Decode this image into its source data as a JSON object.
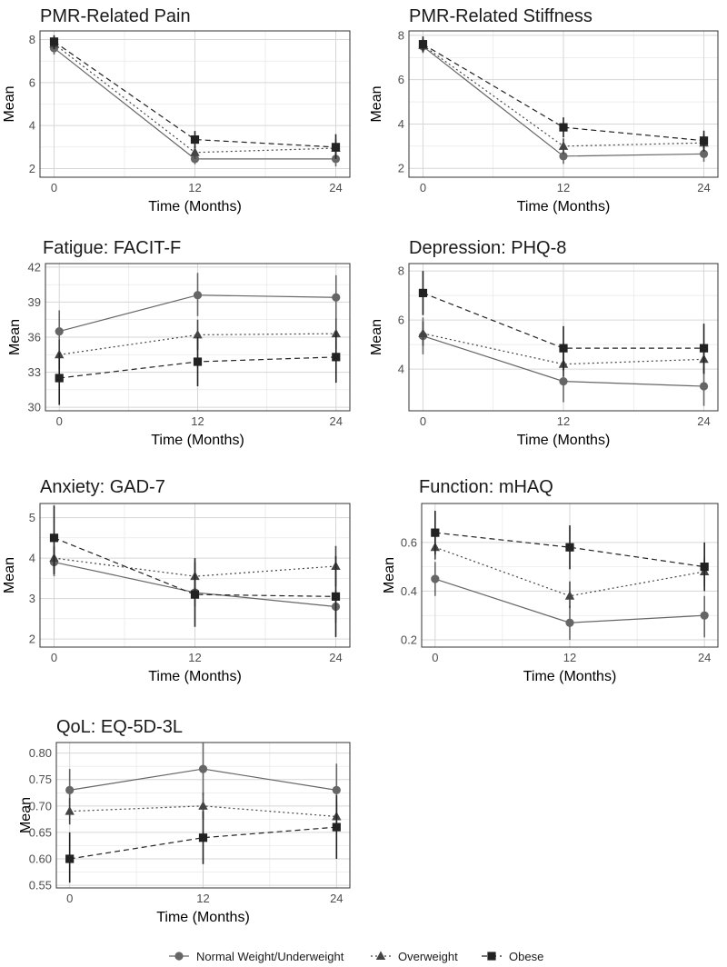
{
  "colors": {
    "normal": "#666666",
    "overweight": "#444444",
    "obese": "#222222",
    "grid": "#e3e3e3",
    "panel_border": "#333333"
  },
  "legend": {
    "items": [
      {
        "label": "Normal Weight/Underweight",
        "shape": "circle",
        "line": "solid"
      },
      {
        "label": "Overweight",
        "shape": "triangle",
        "line": "dotted"
      },
      {
        "label": "Obese",
        "shape": "square",
        "line": "dashed"
      }
    ]
  },
  "chart_data": [
    {
      "type": "line",
      "title": "PMR-Related Pain",
      "xlabel": "Time (Months)",
      "ylabel": "Mean",
      "x": [
        0,
        12,
        24
      ],
      "xticks": [
        0,
        12,
        24
      ],
      "xlim": [
        -1.2,
        25.2
      ],
      "yticks": [
        2,
        4,
        6,
        8
      ],
      "ylim": [
        1.6,
        8.4
      ],
      "series": [
        {
          "name": "Normal Weight/Underweight",
          "values": [
            7.6,
            2.45,
            2.45
          ],
          "err_low": [
            7.3,
            2.2,
            2.1
          ],
          "err_high": [
            7.9,
            2.7,
            2.8
          ]
        },
        {
          "name": "Overweight",
          "values": [
            7.8,
            2.75,
            2.95
          ],
          "err_low": [
            7.55,
            2.45,
            2.55
          ],
          "err_high": [
            8.05,
            3.05,
            3.35
          ]
        },
        {
          "name": "Obese",
          "values": [
            7.9,
            3.35,
            3.0
          ],
          "err_low": [
            7.55,
            2.95,
            2.45
          ],
          "err_high": [
            8.2,
            3.75,
            3.6
          ]
        }
      ]
    },
    {
      "type": "line",
      "title": "PMR-Related Stiffness",
      "xlabel": "Time (Months)",
      "ylabel": "Mean",
      "x": [
        0,
        12,
        24
      ],
      "xticks": [
        0,
        12,
        24
      ],
      "xlim": [
        -1.2,
        25.2
      ],
      "yticks": [
        2,
        4,
        6,
        8
      ],
      "ylim": [
        1.6,
        8.2
      ],
      "series": [
        {
          "name": "Normal Weight/Underweight",
          "values": [
            7.5,
            2.55,
            2.65
          ],
          "err_low": [
            7.2,
            2.2,
            2.3
          ],
          "err_high": [
            7.8,
            2.9,
            3.0
          ]
        },
        {
          "name": "Overweight",
          "values": [
            7.55,
            3.0,
            3.15
          ],
          "err_low": [
            7.25,
            2.65,
            2.75
          ],
          "err_high": [
            7.85,
            3.35,
            3.55
          ]
        },
        {
          "name": "Obese",
          "values": [
            7.6,
            3.85,
            3.25
          ],
          "err_low": [
            7.25,
            3.4,
            2.8
          ],
          "err_high": [
            7.95,
            4.3,
            3.7
          ]
        }
      ]
    },
    {
      "type": "line",
      "title": "Fatigue: FACIT-F",
      "xlabel": "Time (Months)",
      "ylabel": "Mean",
      "x": [
        0,
        12,
        24
      ],
      "xticks": [
        0,
        12,
        24
      ],
      "xlim": [
        -1.2,
        25.2
      ],
      "yticks": [
        30,
        33,
        36,
        39,
        42
      ],
      "ylim": [
        29.7,
        42.3
      ],
      "series": [
        {
          "name": "Normal Weight/Underweight",
          "values": [
            36.5,
            39.6,
            39.4
          ],
          "err_low": [
            34.8,
            37.8,
            37.5
          ],
          "err_high": [
            38.3,
            41.5,
            41.3
          ]
        },
        {
          "name": "Overweight",
          "values": [
            34.5,
            36.2,
            36.3
          ],
          "err_low": [
            33.2,
            34.9,
            35.0
          ],
          "err_high": [
            35.8,
            37.5,
            37.6
          ]
        },
        {
          "name": "Obese",
          "values": [
            32.5,
            33.9,
            34.3
          ],
          "err_low": [
            30.2,
            31.8,
            32.1
          ],
          "err_high": [
            34.7,
            36.0,
            36.5
          ]
        }
      ]
    },
    {
      "type": "line",
      "title": "Depression: PHQ-8",
      "xlabel": "Time (Months)",
      "ylabel": "Mean",
      "x": [
        0,
        12,
        24
      ],
      "xticks": [
        0,
        12,
        24
      ],
      "xlim": [
        -1.2,
        25.2
      ],
      "yticks": [
        4,
        6,
        8
      ],
      "ylim": [
        2.3,
        8.3
      ],
      "series": [
        {
          "name": "Normal Weight/Underweight",
          "values": [
            5.35,
            3.5,
            3.3
          ],
          "err_low": [
            4.6,
            2.65,
            2.5
          ],
          "err_high": [
            6.1,
            4.35,
            4.1
          ]
        },
        {
          "name": "Overweight",
          "values": [
            5.45,
            4.2,
            4.4
          ],
          "err_low": [
            4.95,
            3.7,
            3.85
          ],
          "err_high": [
            5.95,
            4.7,
            4.95
          ]
        },
        {
          "name": "Obese",
          "values": [
            7.1,
            4.85,
            4.85
          ],
          "err_low": [
            6.2,
            3.95,
            3.8
          ],
          "err_high": [
            8.0,
            5.75,
            5.85
          ]
        }
      ]
    },
    {
      "type": "line",
      "title": "Anxiety: GAD-7",
      "xlabel": "Time (Months)",
      "ylabel": "Mean",
      "x": [
        0,
        12,
        24
      ],
      "xticks": [
        0,
        12,
        24
      ],
      "xlim": [
        -1.2,
        25.2
      ],
      "yticks": [
        2,
        3,
        4,
        5
      ],
      "ylim": [
        1.8,
        5.35
      ],
      "series": [
        {
          "name": "Normal Weight/Underweight",
          "values": [
            3.9,
            3.15,
            2.8
          ],
          "err_low": [
            3.55,
            2.8,
            2.4
          ],
          "err_high": [
            4.25,
            3.5,
            3.2
          ]
        },
        {
          "name": "Overweight",
          "values": [
            4.0,
            3.55,
            3.8
          ],
          "err_low": [
            3.7,
            3.2,
            3.3
          ],
          "err_high": [
            4.3,
            3.9,
            4.3
          ]
        },
        {
          "name": "Obese",
          "values": [
            4.5,
            3.1,
            3.05
          ],
          "err_low": [
            3.6,
            2.3,
            2.05
          ],
          "err_high": [
            5.3,
            4.0,
            4.05
          ]
        }
      ]
    },
    {
      "type": "line",
      "title": "Function: mHAQ",
      "xlabel": "Time (Months)",
      "ylabel": "Mean",
      "x": [
        0,
        12,
        24
      ],
      "xticks": [
        0,
        12,
        24
      ],
      "xlim": [
        -1.2,
        25.2
      ],
      "yticks": [
        0.2,
        0.4,
        0.6
      ],
      "ylim": [
        0.17,
        0.76
      ],
      "series": [
        {
          "name": "Normal Weight/Underweight",
          "values": [
            0.45,
            0.27,
            0.3
          ],
          "err_low": [
            0.38,
            0.2,
            0.21
          ],
          "err_high": [
            0.52,
            0.34,
            0.38
          ]
        },
        {
          "name": "Overweight",
          "values": [
            0.58,
            0.38,
            0.48
          ],
          "err_low": [
            0.53,
            0.33,
            0.42
          ],
          "err_high": [
            0.63,
            0.44,
            0.54
          ]
        },
        {
          "name": "Obese",
          "values": [
            0.64,
            0.58,
            0.5
          ],
          "err_low": [
            0.55,
            0.49,
            0.4
          ],
          "err_high": [
            0.73,
            0.67,
            0.6
          ]
        }
      ]
    },
    {
      "type": "line",
      "title": "QoL: EQ-5D-3L",
      "xlabel": "Time (Months)",
      "ylabel": "Mean",
      "x": [
        0,
        12,
        24
      ],
      "xticks": [
        0,
        12,
        24
      ],
      "xlim": [
        -1.2,
        25.2
      ],
      "yticks": [
        0.55,
        0.6,
        0.65,
        0.7,
        0.75,
        0.8
      ],
      "yticklabels": [
        "0.55",
        "0.60",
        "0.65",
        "0.70",
        "0.75",
        "0.80"
      ],
      "ylim": [
        0.545,
        0.82
      ],
      "series": [
        {
          "name": "Normal Weight/Underweight",
          "values": [
            0.73,
            0.77,
            0.73
          ],
          "err_low": [
            0.69,
            0.72,
            0.68
          ],
          "err_high": [
            0.77,
            0.82,
            0.78
          ]
        },
        {
          "name": "Overweight",
          "values": [
            0.69,
            0.7,
            0.68
          ],
          "err_low": [
            0.665,
            0.675,
            0.655
          ],
          "err_high": [
            0.715,
            0.725,
            0.705
          ]
        },
        {
          "name": "Obese",
          "values": [
            0.6,
            0.64,
            0.66
          ],
          "err_low": [
            0.555,
            0.59,
            0.6
          ],
          "err_high": [
            0.65,
            0.69,
            0.72
          ]
        }
      ]
    }
  ]
}
